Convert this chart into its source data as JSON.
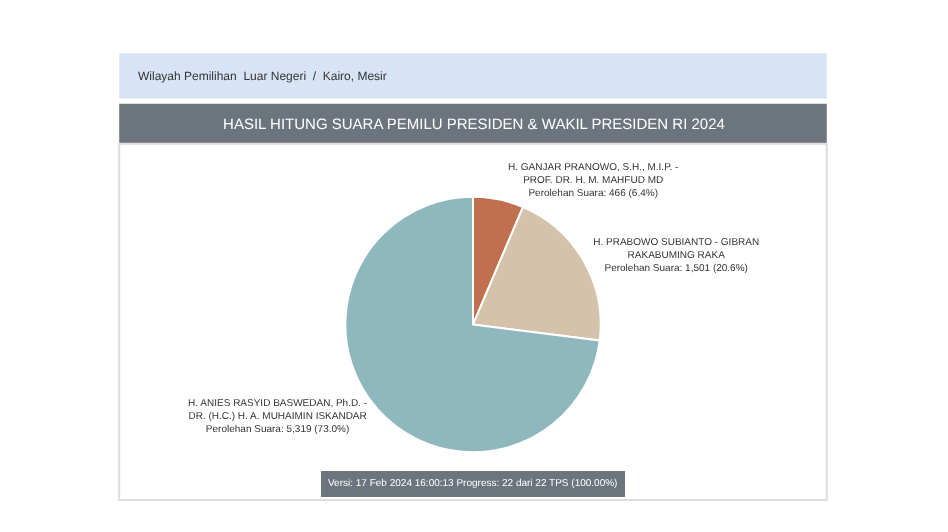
{
  "chart_data": {
    "type": "pie",
    "title": "HASIL HITUNG SUARA PEMILU PRESIDEN & WAKIL PRESIDEN RI 2024",
    "categories": [
      "H. GANJAR PRANOWO, S.H., M.I.P. - PROF. DR. H. M. MAHFUD MD",
      "H. PRABOWO SUBIANTO - GIBRAN RAKABUMING RAKA",
      "H. ANIES RASYID BASWEDAN, Ph.D. - DR. (H.C.) H. A. MUHAIMIN ISKANDAR"
    ],
    "values": [
      6.4,
      20.6,
      73.0
    ],
    "value_labels": [
      "Perolehan Suara: 466 (6.4%)",
      "Perolehan Suara: 1,501 (20.6%)",
      "Perolehan Suara: 5,319 (73.0%)"
    ],
    "colors": [
      "#c0704f",
      "#d4c2aa",
      "#8fb8be"
    ],
    "annotations": [
      "Wilayah Pemilihan  Luar Negeri  /  Kairo, Mesir",
      "Versi: 17 Feb 2024 16:00:13 Progress: 22 dari 22 TPS (100.00%)"
    ],
    "legend": false
  }
}
